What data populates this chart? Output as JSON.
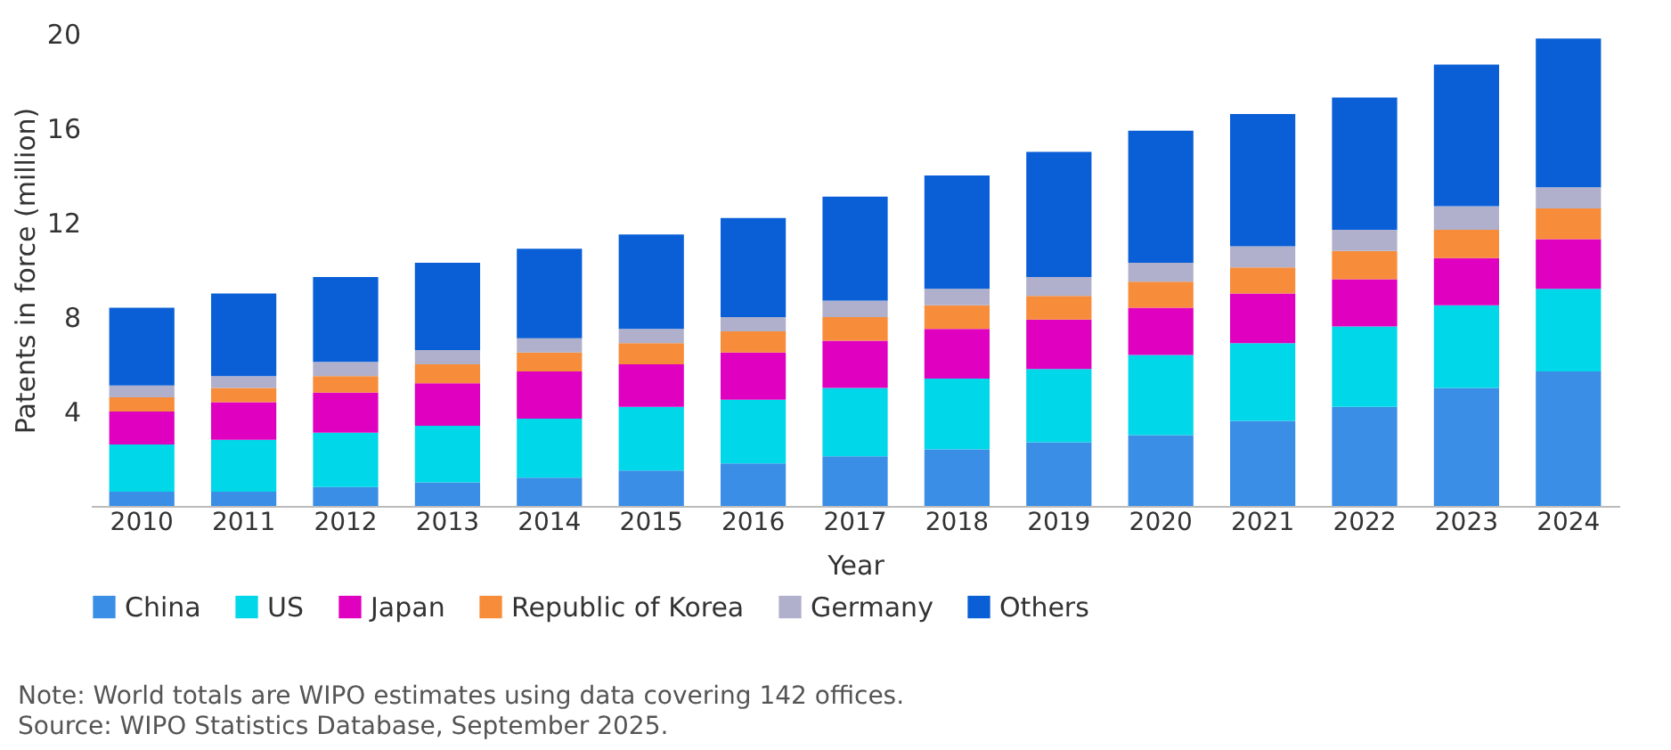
{
  "chart_data": {
    "type": "bar",
    "stacked": true,
    "xlabel": "Year",
    "ylabel": "Patents in force (million)",
    "categories": [
      "2010",
      "2011",
      "2012",
      "2013",
      "2014",
      "2015",
      "2016",
      "2017",
      "2018",
      "2019",
      "2020",
      "2021",
      "2022",
      "2023",
      "2024"
    ],
    "series": [
      {
        "name": "China",
        "color": "#3a8ee6",
        "values": [
          0.6,
          0.6,
          0.8,
          1.0,
          1.2,
          1.5,
          1.8,
          2.1,
          2.4,
          2.7,
          3.0,
          3.6,
          4.2,
          5.0,
          5.7
        ]
      },
      {
        "name": "US",
        "color": "#00d7e8",
        "values": [
          2.0,
          2.2,
          2.3,
          2.4,
          2.5,
          2.7,
          2.7,
          2.9,
          3.0,
          3.1,
          3.4,
          3.3,
          3.4,
          3.5,
          3.5
        ]
      },
      {
        "name": "Japan",
        "color": "#e000c0",
        "values": [
          1.4,
          1.6,
          1.7,
          1.8,
          2.0,
          1.8,
          2.0,
          2.0,
          2.1,
          2.1,
          2.0,
          2.1,
          2.0,
          2.0,
          2.1
        ]
      },
      {
        "name": "Republic of Korea",
        "color": "#f78c3a",
        "values": [
          0.6,
          0.6,
          0.7,
          0.8,
          0.8,
          0.9,
          0.9,
          1.0,
          1.0,
          1.0,
          1.1,
          1.1,
          1.2,
          1.2,
          1.3
        ]
      },
      {
        "name": "Germany",
        "color": "#b0b0cc",
        "values": [
          0.5,
          0.5,
          0.6,
          0.6,
          0.6,
          0.6,
          0.6,
          0.7,
          0.7,
          0.8,
          0.8,
          0.9,
          0.9,
          1.0,
          0.9
        ]
      },
      {
        "name": "Others",
        "color": "#0a5fd6",
        "values": [
          3.3,
          3.5,
          3.6,
          3.7,
          3.8,
          4.0,
          4.2,
          4.4,
          4.8,
          5.3,
          5.6,
          5.6,
          5.6,
          6.0,
          6.3
        ]
      }
    ],
    "ylim": [
      0,
      20
    ],
    "yticks": [
      4,
      8,
      12,
      16,
      20
    ],
    "legend": "bottom",
    "annotations": [
      "Note: World totals are WIPO estimates using data covering 142 offices.",
      "Source: WIPO Statistics Database, September 2025."
    ]
  }
}
